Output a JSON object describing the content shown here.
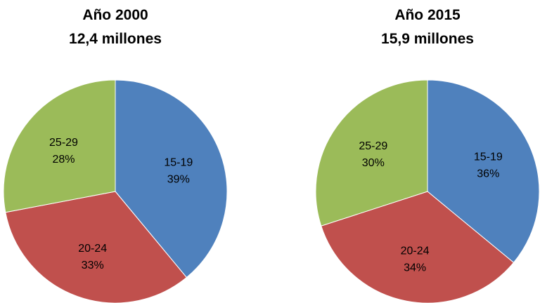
{
  "chart_data": [
    {
      "type": "pie",
      "title": "Año 2000",
      "subtitle": "12,4 millones",
      "slices": [
        {
          "label": "15-19",
          "value": 39,
          "value_label": "39%",
          "color": "#4F81BD"
        },
        {
          "label": "20-24",
          "value": 33,
          "value_label": "33%",
          "color": "#C0504D"
        },
        {
          "label": "25-29",
          "value": 28,
          "value_label": "28%",
          "color": "#9BBB59"
        }
      ]
    },
    {
      "type": "pie",
      "title": "Año 2015",
      "subtitle": "15,9 millones",
      "slices": [
        {
          "label": "15-19",
          "value": 36,
          "value_label": "36%",
          "color": "#4F81BD"
        },
        {
          "label": "20-24",
          "value": 34,
          "value_label": "34%",
          "color": "#C0504D"
        },
        {
          "label": "25-29",
          "value": 30,
          "value_label": "30%",
          "color": "#9BBB59"
        }
      ]
    }
  ]
}
